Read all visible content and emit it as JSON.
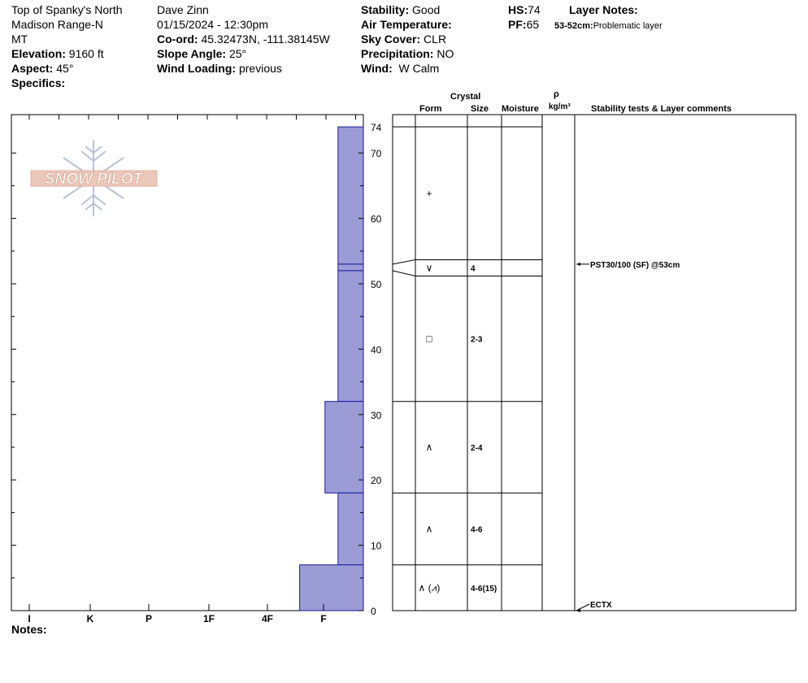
{
  "header": {
    "location_line1": "Top of Spanky's North",
    "location_line2": "Madison Range-N",
    "location_line3": "MT",
    "elevation_label": "Elevation:",
    "elevation_value": "9160 ft",
    "aspect_label": "Aspect:",
    "aspect_value": "45°",
    "specifics_label": "Specifics:",
    "observer": "Dave Zinn",
    "datetime": "01/15/2024 - 12:30pm",
    "coord_label": "Co-ord:",
    "coord_value": "45.32473N, -111.38145W",
    "slope_label": "Slope Angle:",
    "slope_value": "25°",
    "wind_loading_label": "Wind Loading:",
    "wind_loading_value": "previous",
    "stability_label": "Stability:",
    "stability_value": "Good",
    "air_temp_label": "Air Temperature:",
    "sky_label": "Sky Cover:",
    "sky_value": "CLR",
    "precip_label": "Precipitation:",
    "precip_value": "NO",
    "wind_label": "Wind:",
    "wind_value": "W Calm",
    "hs_label": "HS:",
    "hs_value": "74",
    "pf_label": "PF:",
    "pf_value": "65",
    "layer_notes_label": "Layer Notes:",
    "layer_note_depth": "53-52cm:",
    "layer_note_text": "Problematic layer"
  },
  "logo_text": "SNOW PILOT",
  "notes_label": "Notes:",
  "column_headers": {
    "crystal": "Crystal",
    "form": "Form",
    "size": "Size",
    "moisture": "Moisture",
    "rho": "ρ",
    "density_unit": "kg/m³",
    "comments": "Stability tests & Layer comments"
  },
  "chart_data": {
    "type": "snow-profile",
    "hs": 74,
    "ylim": [
      0,
      74
    ],
    "y_ticks": [
      0,
      10,
      20,
      30,
      40,
      50,
      60,
      70,
      74
    ],
    "hardness_scale": [
      "I",
      "K",
      "P",
      "1F",
      "4F",
      "F"
    ],
    "hardness_scale_order_note": "labels in order as printed left to right",
    "bar_color": "#9b9bd6",
    "bar_edge_color": "#1a1aa0",
    "layers": [
      {
        "top": 74,
        "bottom": 53,
        "hardness_level": 0.33,
        "form": "+",
        "size": ""
      },
      {
        "top": 53,
        "bottom": 52,
        "hardness_level": 0.33,
        "form": "∨",
        "size": "4"
      },
      {
        "top": 52,
        "bottom": 32,
        "hardness_level": 0.33,
        "form": "□",
        "size": "2-3"
      },
      {
        "top": 32,
        "bottom": 18,
        "hardness_level": 0.5,
        "form": "∧",
        "size": "2-4"
      },
      {
        "top": 18,
        "bottom": 7,
        "hardness_level": 0.33,
        "form": "∧",
        "size": "4-6"
      },
      {
        "top": 7,
        "bottom": 0,
        "hardness_level": 0.83,
        "form": "∧ (⩘)",
        "size": "4-6(15)"
      }
    ],
    "stability_tests": [
      {
        "depth": 53,
        "text": "PST30/100 (SF) @53cm"
      },
      {
        "depth": 0,
        "text": "ECTX"
      }
    ]
  }
}
